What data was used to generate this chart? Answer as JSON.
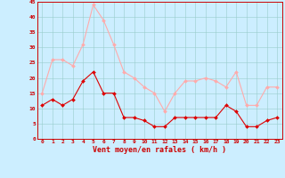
{
  "x": [
    0,
    1,
    2,
    3,
    4,
    5,
    6,
    7,
    8,
    9,
    10,
    11,
    12,
    13,
    14,
    15,
    16,
    17,
    18,
    19,
    20,
    21,
    22,
    23
  ],
  "vent_moyen": [
    11,
    13,
    11,
    13,
    19,
    22,
    15,
    15,
    7,
    7,
    6,
    4,
    4,
    7,
    7,
    7,
    7,
    7,
    11,
    9,
    4,
    4,
    6,
    7
  ],
  "rafales": [
    15,
    26,
    26,
    24,
    31,
    44,
    39,
    31,
    22,
    20,
    17,
    15,
    9,
    15,
    19,
    19,
    20,
    19,
    17,
    22,
    11,
    11,
    17,
    17
  ],
  "color_moyen": "#dd0000",
  "color_rafales": "#ffaaaa",
  "background_color": "#cceeff",
  "grid_color": "#99cccc",
  "xlabel": "Vent moyen/en rafales ( km/h )",
  "xlabel_color": "#cc0000",
  "tick_color": "#cc0000",
  "ylim": [
    0,
    45
  ],
  "xlim": [
    -0.5,
    23.5
  ],
  "yticks": [
    0,
    5,
    10,
    15,
    20,
    25,
    30,
    35,
    40,
    45
  ],
  "xticks": [
    0,
    1,
    2,
    3,
    4,
    5,
    6,
    7,
    8,
    9,
    10,
    11,
    12,
    13,
    14,
    15,
    16,
    17,
    18,
    19,
    20,
    21,
    22,
    23
  ]
}
